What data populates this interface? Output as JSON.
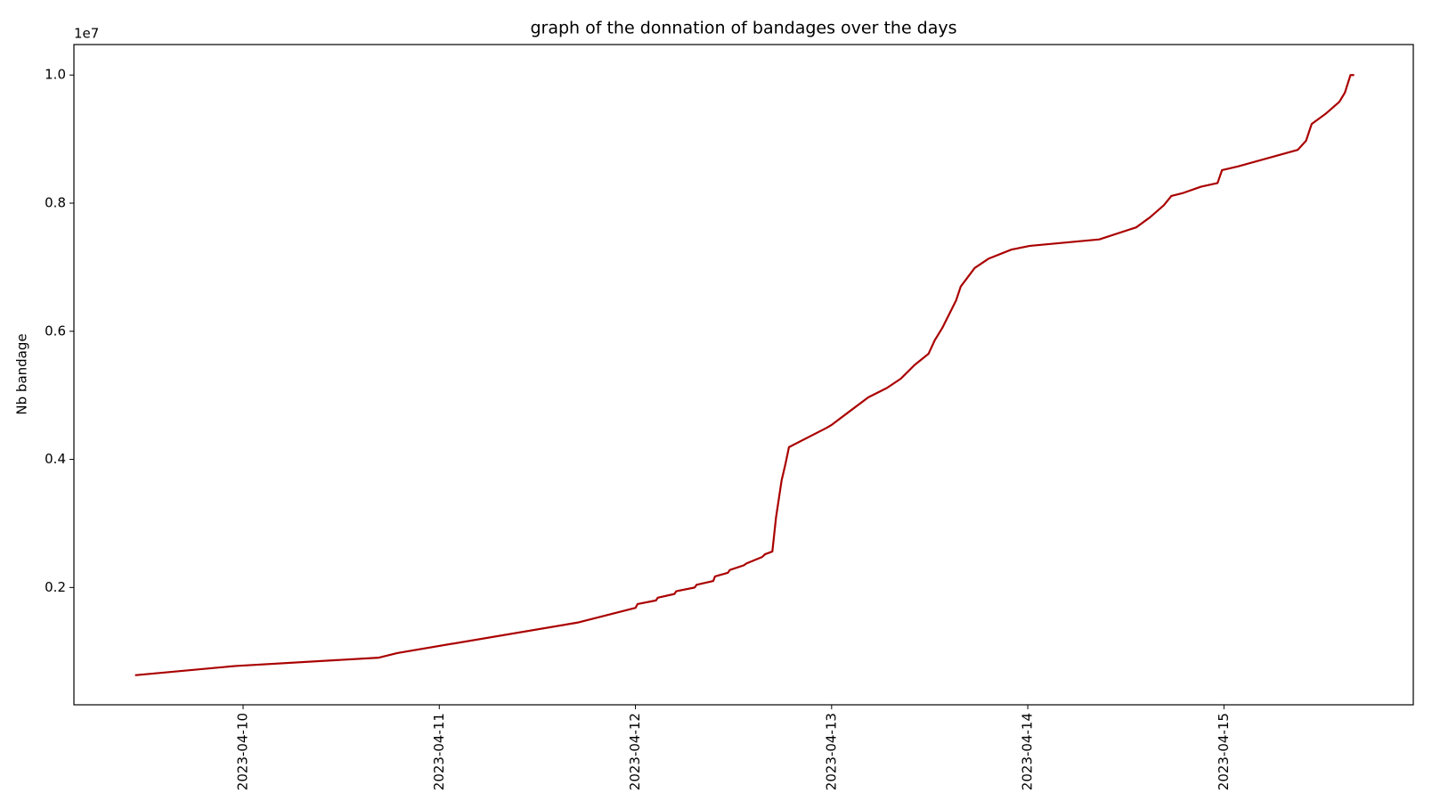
{
  "chart_data": {
    "type": "line",
    "title": "graph of the donnation of bandages over the days",
    "y_label": "Nb bandage",
    "y_offset_label": "1e7",
    "x": [
      "2023-04-09 10:47",
      "2023-04-09 23:06",
      "2023-04-10 16:37",
      "2023-04-10 18:52",
      "2023-04-11 16:54",
      "2023-04-12 00:01",
      "2023-04-12 00:15",
      "2023-04-12 02:31",
      "2023-04-12 02:44",
      "2023-04-12 04:46",
      "2023-04-12 05:00",
      "2023-04-12 07:15",
      "2023-04-12 07:29",
      "2023-04-12 09:31",
      "2023-04-12 09:44",
      "2023-04-12 11:19",
      "2023-04-12 11:33",
      "2023-04-12 13:15",
      "2023-04-12 13:35",
      "2023-04-12 15:30",
      "2023-04-12 15:51",
      "2023-04-12 16:45",
      "2023-04-12 17:12",
      "2023-04-12 17:53",
      "2023-04-12 18:20",
      "2023-04-12 18:47",
      "2023-04-12 23:25",
      "2023-04-12 23:59",
      "2023-04-13 02:14",
      "2023-04-13 04:30",
      "2023-04-13 06:45",
      "2023-04-13 08:27",
      "2023-04-13 10:09",
      "2023-04-13 11:51",
      "2023-04-13 12:38",
      "2023-04-13 13:32",
      "2023-04-13 15:14",
      "2023-04-13 15:48",
      "2023-04-13 17:30",
      "2023-04-13 19:11",
      "2023-04-13 22:01",
      "2023-04-14 00:16",
      "2023-04-14 08:45",
      "2023-04-14 13:16",
      "2023-04-14 14:58",
      "2023-04-14 16:39",
      "2023-04-14 17:34",
      "2023-04-14 18:55",
      "2023-04-14 21:11",
      "2023-04-14 23:13",
      "2023-04-14 23:46",
      "2023-04-15 01:42",
      "2023-04-15 09:02",
      "2023-04-15 10:03",
      "2023-04-15 10:44",
      "2023-04-15 12:26",
      "2023-04-15 14:07",
      "2023-04-15 14:48",
      "2023-04-15 15:29",
      "2023-04-15 15:56"
    ],
    "series": [
      {
        "color": "#aa0000",
        "values": [
          631000,
          775000,
          905000,
          977000,
          1452000,
          1683000,
          1741000,
          1798000,
          1841000,
          1899000,
          1942000,
          2000000,
          2043000,
          2101000,
          2173000,
          2231000,
          2274000,
          2346000,
          2375000,
          2476000,
          2519000,
          2562000,
          3095000,
          3672000,
          3917000,
          4191000,
          4494000,
          4537000,
          4753000,
          4969000,
          5114000,
          5258000,
          5474000,
          5647000,
          5863000,
          6050000,
          6483000,
          6699000,
          6987000,
          7132000,
          7276000,
          7333000,
          7434000,
          7622000,
          7780000,
          7968000,
          8112000,
          8155000,
          8256000,
          8314000,
          8516000,
          8573000,
          8832000,
          8976000,
          9236000,
          9394000,
          9582000,
          9726000,
          10000000,
          10000000
        ]
      }
    ],
    "xlim": [
      "2023-04-09 03:18",
      "2023-04-15 23:10"
    ],
    "xticks": [
      "2023-04-10",
      "2023-04-11",
      "2023-04-12",
      "2023-04-13",
      "2023-04-14",
      "2023-04-15"
    ],
    "ylim": [
      169000,
      10476000
    ],
    "yticks": [
      {
        "value": 2000000,
        "label": "0.2"
      },
      {
        "value": 4000000,
        "label": "0.4"
      },
      {
        "value": 6000000,
        "label": "0.6"
      },
      {
        "value": 8000000,
        "label": "0.8"
      },
      {
        "value": 10000000,
        "label": "1.0"
      }
    ]
  }
}
